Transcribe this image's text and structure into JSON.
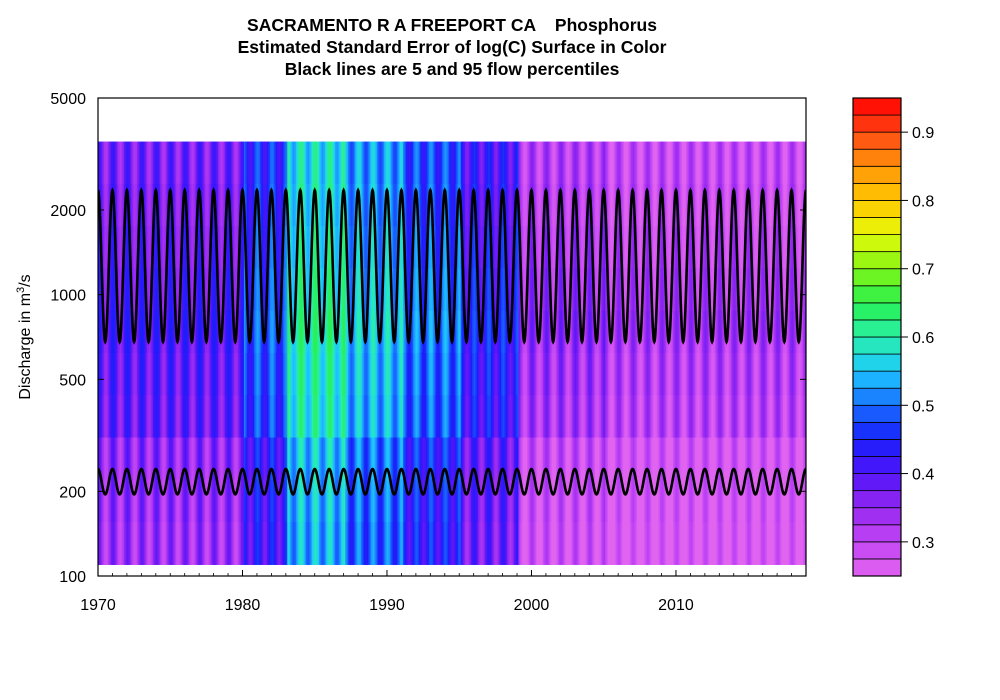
{
  "chart_data": {
    "type": "heatmap",
    "title": "SACRAMENTO R A FREEPORT CA    Phosphorus",
    "subtitle": "Estimated Standard Error of log(C) Surface in Color",
    "subtitle2": "Black lines are 5 and 95 flow percentiles",
    "ylabel_prefix": "Discharge in m",
    "ylabel_sup": "3",
    "ylabel_suffix": "/s",
    "y_scale": "log",
    "xlim": [
      1970,
      2019
    ],
    "ylim": [
      100,
      5000
    ],
    "surface_y_range": [
      110,
      3500
    ],
    "x_ticks": [
      "1970",
      "1980",
      "1990",
      "2000",
      "2010"
    ],
    "x_tick_values": [
      1970,
      1980,
      1990,
      2000,
      2010
    ],
    "y_ticks": [
      "100",
      "200",
      "500",
      "1000",
      "2000",
      "5000"
    ],
    "y_tick_values": [
      100,
      200,
      500,
      1000,
      2000,
      5000
    ],
    "colorbar": {
      "min": 0.25,
      "max": 0.95,
      "step": 0.025,
      "tick_labels": [
        "0.3",
        "0.4",
        "0.5",
        "0.6",
        "0.7",
        "0.8",
        "0.9"
      ],
      "tick_values": [
        0.3,
        0.4,
        0.5,
        0.6,
        0.7,
        0.8,
        0.9
      ]
    },
    "flow_percentile_lines": [
      {
        "name": "95 flow percentile",
        "min": 680,
        "max": 2350
      },
      {
        "name": "5 flow percentile",
        "min": 195,
        "max": 240
      }
    ],
    "se_by_period": [
      {
        "from": 1970,
        "to": 1980,
        "value": 0.4
      },
      {
        "from": 1980,
        "to": 1983,
        "value": 0.48
      },
      {
        "from": 1983,
        "to": 1987,
        "value": 0.6
      },
      {
        "from": 1987,
        "to": 1991,
        "value": 0.55
      },
      {
        "from": 1991,
        "to": 1995,
        "value": 0.5
      },
      {
        "from": 1995,
        "to": 1999,
        "value": 0.44
      },
      {
        "from": 1999,
        "to": 2005,
        "value": 0.34
      },
      {
        "from": 2005,
        "to": 2019,
        "value": 0.32
      }
    ]
  }
}
